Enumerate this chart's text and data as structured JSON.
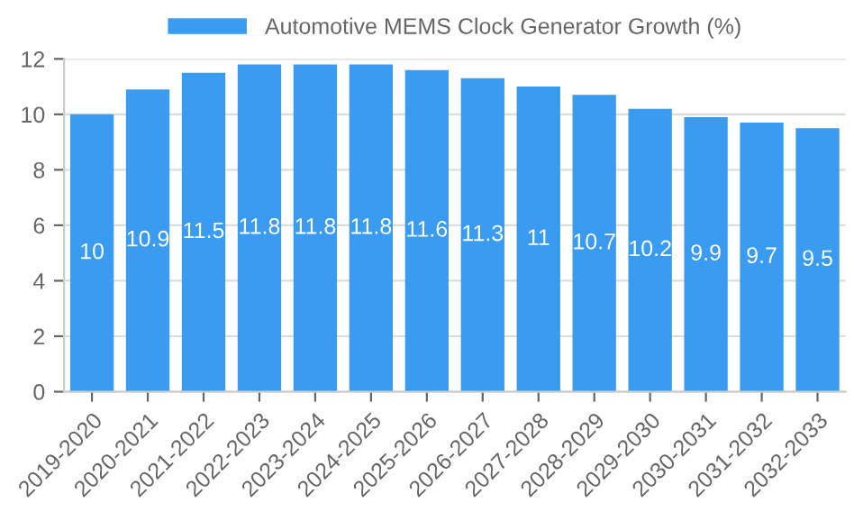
{
  "chart_data": {
    "type": "bar",
    "categories": [
      "2019-2020",
      "2020-2021",
      "2021-2022",
      "2022-2023",
      "2023-2024",
      "2024-2025",
      "2025-2026",
      "2026-2027",
      "2027-2028",
      "2028-2029",
      "2029-2030",
      "2030-2031",
      "2031-2032",
      "2032-2033"
    ],
    "series": [
      {
        "name": "Automotive MEMS Clock Generator Growth (%)",
        "color": "#3a9cf0",
        "values": [
          10,
          10.9,
          11.5,
          11.8,
          11.8,
          11.8,
          11.6,
          11.3,
          11,
          10.7,
          10.2,
          9.9,
          9.7,
          9.5
        ]
      }
    ],
    "ylim": [
      0,
      12
    ],
    "yticks": [
      0,
      2,
      4,
      6,
      8,
      10,
      12
    ],
    "grid": "y",
    "legend": "top",
    "data_labels": true
  }
}
